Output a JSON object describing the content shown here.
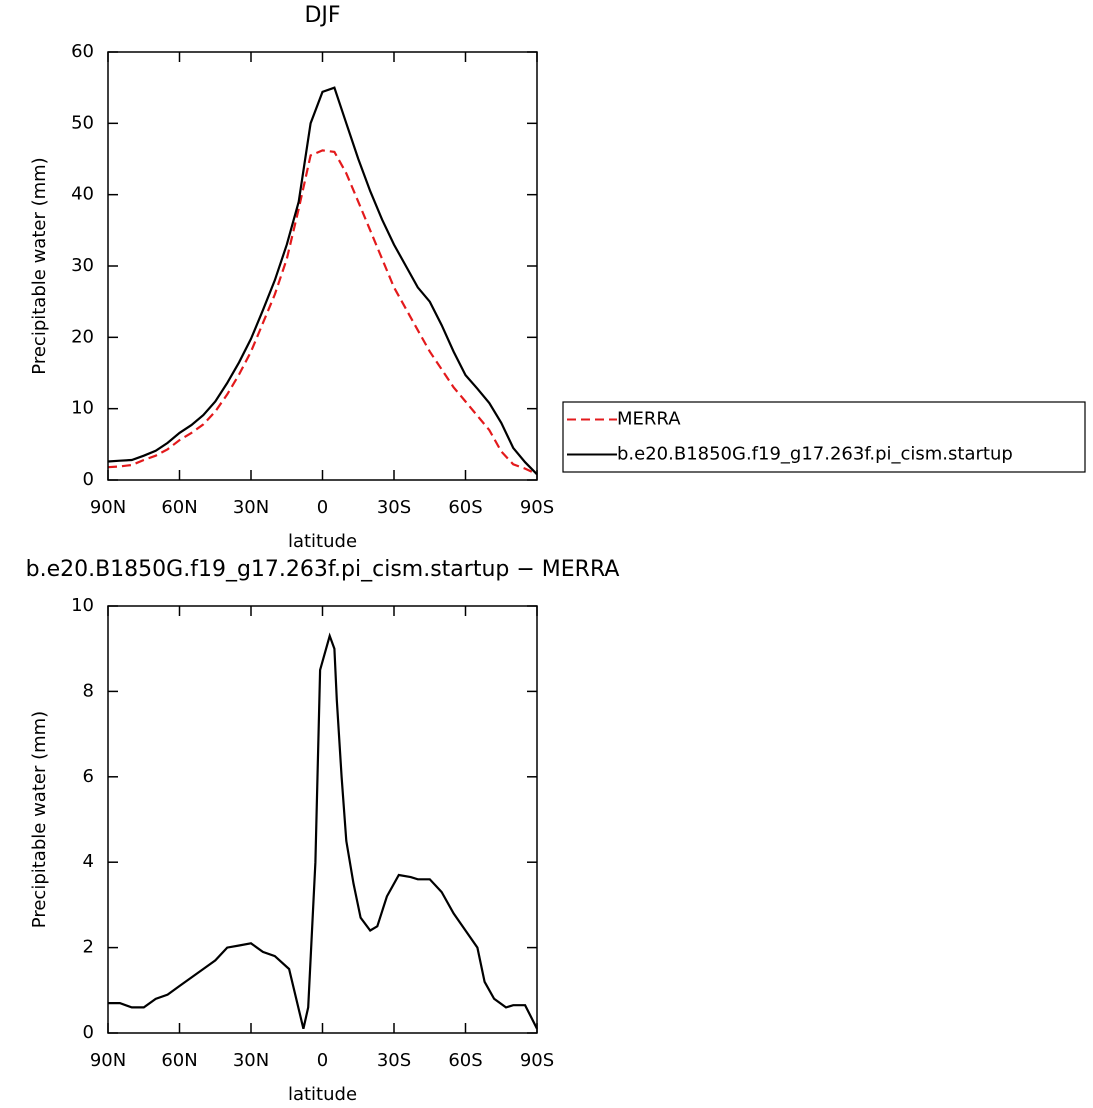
{
  "chart_data": [
    {
      "type": "line",
      "title": "DJF",
      "xlabel": "latitude",
      "ylabel": "Precipitable water (mm)",
      "x": [
        90,
        85,
        80,
        75,
        70,
        65,
        60,
        55,
        50,
        45,
        40,
        35,
        30,
        25,
        20,
        15,
        10,
        5,
        0,
        -5,
        -10,
        -15,
        -20,
        -25,
        -30,
        -35,
        -40,
        -45,
        -50,
        -55,
        -60,
        -65,
        -70,
        -75,
        -80,
        -85,
        -90
      ],
      "series": [
        {
          "name": "MERRA",
          "color": "#e31a1c",
          "dashed": true,
          "values": [
            1.8,
            1.9,
            2.1,
            2.8,
            3.4,
            4.3,
            5.6,
            6.6,
            7.8,
            9.6,
            12.0,
            14.8,
            18.0,
            22.0,
            26.0,
            31.0,
            38.0,
            45.5,
            46.2,
            46.0,
            43.0,
            39.0,
            35.0,
            31.0,
            27.0,
            24.0,
            21.0,
            18.0,
            15.5,
            13.0,
            11.0,
            9.0,
            7.0,
            4.0,
            2.2,
            1.6,
            0.8
          ]
        },
        {
          "name": "b.e20.B1850G.f19_g17.263f.pi_cism.startup",
          "color": "#000000",
          "dashed": false,
          "values": [
            2.6,
            2.7,
            2.8,
            3.4,
            4.1,
            5.2,
            6.6,
            7.7,
            9.1,
            11.0,
            13.6,
            16.5,
            19.8,
            23.8,
            28.0,
            33.0,
            39.0,
            50.0,
            54.4,
            55.0,
            50.0,
            45.0,
            40.5,
            36.5,
            33.0,
            30.0,
            27.0,
            25.0,
            21.7,
            18.0,
            14.7,
            12.8,
            10.8,
            8.0,
            4.5,
            2.5,
            0.8
          ]
        }
      ],
      "xlim": [
        90,
        -90
      ],
      "ylim": [
        0,
        60
      ],
      "xticks": [
        {
          "value": 90,
          "label": "90N"
        },
        {
          "value": 60,
          "label": "60N"
        },
        {
          "value": 30,
          "label": "30N"
        },
        0,
        {
          "value": -30,
          "label": "30S"
        },
        {
          "value": -60,
          "label": "60S"
        },
        {
          "value": -90,
          "label": "90S"
        }
      ],
      "yticks": [
        0,
        10,
        20,
        30,
        40,
        50,
        60
      ],
      "legend": "right"
    },
    {
      "type": "line",
      "title": "b.e20.B1850G.f19_g17.263f.pi_cism.startup − MERRA",
      "xlabel": "latitude",
      "ylabel": "Precipitable water (mm)",
      "x": [
        90,
        85,
        80,
        75,
        70,
        65,
        60,
        55,
        50,
        45,
        40,
        35,
        30,
        25,
        20,
        14,
        8,
        6,
        3,
        1,
        -3,
        -5,
        -6,
        -8,
        -10,
        -13,
        -16,
        -20,
        -23,
        -27,
        -32,
        -37,
        -40,
        -45,
        -50,
        -55,
        -60,
        -65,
        -68,
        -72,
        -77,
        -80,
        -85,
        -90
      ],
      "series": [
        {
          "color": "#000000",
          "dashed": false,
          "values": [
            0.7,
            0.7,
            0.6,
            0.6,
            0.8,
            0.9,
            1.1,
            1.3,
            1.5,
            1.7,
            2.0,
            2.05,
            2.1,
            1.9,
            1.8,
            1.5,
            0.1,
            0.6,
            4.0,
            8.5,
            9.3,
            9.0,
            7.8,
            6.0,
            4.5,
            3.5,
            2.7,
            2.4,
            2.5,
            3.2,
            3.7,
            3.65,
            3.6,
            3.6,
            3.3,
            2.8,
            2.4,
            2.0,
            1.2,
            0.8,
            0.6,
            0.65,
            0.65,
            0.1
          ]
        }
      ],
      "xlim": [
        90,
        -90
      ],
      "ylim": [
        0,
        10
      ],
      "xticks": [
        {
          "value": 90,
          "label": "90N"
        },
        {
          "value": 60,
          "label": "60N"
        },
        {
          "value": 30,
          "label": "30N"
        },
        0,
        {
          "value": -30,
          "label": "30S"
        },
        {
          "value": -60,
          "label": "60S"
        },
        {
          "value": -90,
          "label": "90S"
        }
      ],
      "yticks": [
        0,
        2,
        4,
        6,
        8,
        10
      ]
    }
  ]
}
